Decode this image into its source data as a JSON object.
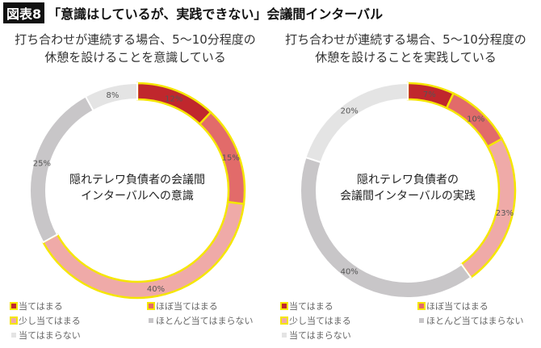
{
  "title": {
    "badge": "図表8",
    "text": "「意識はしているが、実践できない」会議間インターバル"
  },
  "chart_data": [
    {
      "type": "pie",
      "subtitle_lines": [
        "打ち合わせが連続する場合、5〜10分程度の",
        "休憩を設けることを意識している"
      ],
      "center_lines": [
        "隠れテレワ負債者の会議間",
        "インターバルへの意識"
      ],
      "categories": [
        "当てはまる",
        "ほぼ当てはまる",
        "少し当てはまる",
        "ほとんど当てはまらない",
        "当てはまらない"
      ],
      "values": [
        12,
        15,
        40,
        25,
        8
      ]
    },
    {
      "type": "pie",
      "subtitle_lines": [
        "打ち合わせが連続する場合、5〜10分程度の",
        "休憩を設けることを実践している"
      ],
      "center_lines": [
        "隠れテレワ負債者の",
        "会議間インターバルの実践"
      ],
      "categories": [
        "当てはまる",
        "ほぼ当てはまる",
        "少し当てはまる",
        "ほとんど当てはまらない",
        "当てはまらない"
      ],
      "values": [
        7,
        10,
        23,
        40,
        20
      ]
    }
  ],
  "colors": [
    "#c0272d",
    "#e26b6a",
    "#efaaa8",
    "#c8c6c8",
    "#e4e4e4"
  ],
  "highlight": "#f5e600"
}
